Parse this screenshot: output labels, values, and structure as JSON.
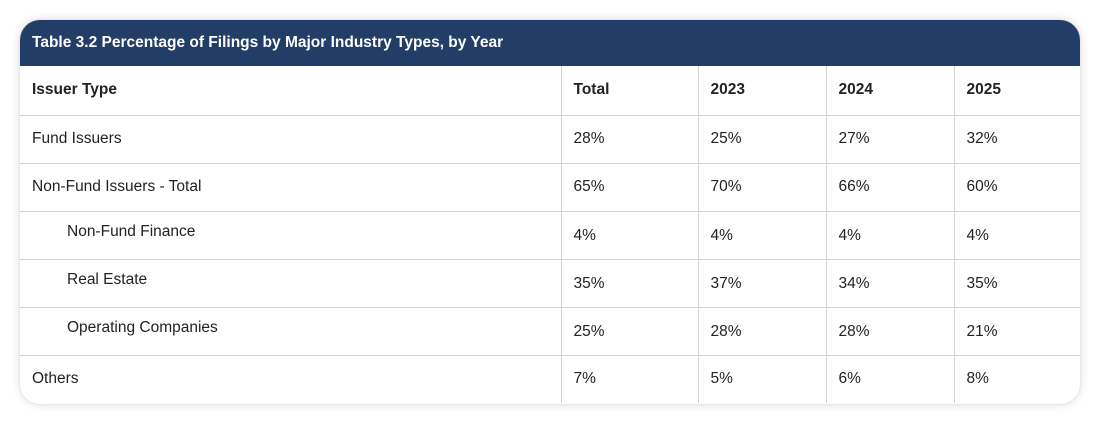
{
  "table": {
    "title": "Table 3.2 Percentage of Filings by Major Industry Types, by Year",
    "headers": [
      "Issuer Type",
      "Total",
      "2023",
      "2024",
      "2025"
    ],
    "rows": [
      {
        "label": "Fund Issuers",
        "values": [
          "28%",
          "25%",
          "27%",
          "32%"
        ]
      },
      {
        "label": "Non-Fund Issuers - Total",
        "values": [
          "65%",
          "70%",
          "66%",
          "60%"
        ]
      },
      {
        "label": "Non-Fund Finance",
        "values": [
          "4%",
          "4%",
          "4%",
          "4%"
        ]
      },
      {
        "label": "Real Estate",
        "values": [
          "35%",
          "37%",
          "34%",
          "35%"
        ]
      },
      {
        "label": "Operating Companies",
        "values": [
          "25%",
          "28%",
          "28%",
          "21%"
        ]
      },
      {
        "label": "Others",
        "values": [
          "7%",
          "5%",
          "6%",
          "8%"
        ]
      }
    ]
  },
  "colors": {
    "title_bar": "#233e66",
    "title_text": "#ffffff",
    "grid_line": "#d3d3d3",
    "text": "#222222"
  }
}
